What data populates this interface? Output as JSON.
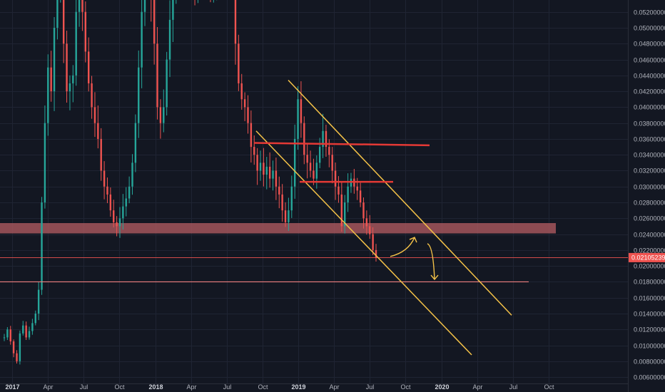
{
  "chart_data": {
    "type": "candlestick",
    "price_scale": {
      "ylim": [
        0.0052,
        0.0535
      ],
      "tick_labels": [
        "0.05200000",
        "0.05000000",
        "0.04800000",
        "0.04600000",
        "0.04400000",
        "0.04200000",
        "0.04000000",
        "0.03800000",
        "0.03600000",
        "0.03400000",
        "0.03200000",
        "0.03000000",
        "0.02800000",
        "0.02600000",
        "0.02400000",
        "0.02200000",
        "0.02000000",
        "0.01800000",
        "0.01600000",
        "0.01400000",
        "0.01200000",
        "0.01000000",
        "0.00800000",
        "0.00600000"
      ],
      "tick_values": [
        0.052,
        0.05,
        0.048,
        0.046,
        0.044,
        0.042,
        0.04,
        0.038,
        0.036,
        0.034,
        0.032,
        0.03,
        0.028,
        0.026,
        0.024,
        0.022,
        0.02,
        0.018,
        0.016,
        0.014,
        0.012,
        0.01,
        0.008,
        0.006
      ]
    },
    "time_scale": {
      "labels": [
        "2017",
        "Apr",
        "Jul",
        "Oct",
        "2018",
        "Apr",
        "Jul",
        "Oct",
        "2019",
        "Apr",
        "Jul",
        "Oct",
        "2020",
        "Apr",
        "Jul",
        "Oct"
      ],
      "bold": [
        "2017",
        "2018",
        "2019",
        "2020"
      ]
    },
    "last_price": {
      "label": "0.02105239",
      "value": 0.02105239
    },
    "series": [
      {
        "values": [
          0.011,
          0.012,
          0.0105,
          0.009,
          0.008,
          0.0115,
          0.0125,
          0.011,
          0.0118,
          0.0128,
          0.014,
          0.017,
          0.028,
          0.038,
          0.045,
          0.042,
          0.05,
          0.055,
          0.056,
          0.048,
          0.042,
          0.043,
          0.044,
          0.052,
          0.056,
          0.052,
          0.047,
          0.043,
          0.04,
          0.038,
          0.036,
          0.032,
          0.03,
          0.029,
          0.027,
          0.0255,
          0.025,
          0.026,
          0.0275,
          0.0285,
          0.03,
          0.033,
          0.038,
          0.045,
          0.052,
          0.056,
          0.057,
          0.054,
          0.048,
          0.04,
          0.038,
          0.04,
          0.046,
          0.051,
          0.056,
          0.06,
          0.062,
          0.061,
          0.059,
          0.057,
          0.056,
          0.055,
          0.056,
          0.057,
          0.056,
          0.055,
          0.0545,
          0.0555,
          0.057,
          0.058,
          0.06,
          0.062,
          0.06,
          0.056,
          0.048,
          0.043,
          0.041,
          0.04,
          0.038,
          0.035,
          0.034,
          0.032,
          0.033,
          0.0315,
          0.0325,
          0.031,
          0.032,
          0.03,
          0.029,
          0.027,
          0.0255,
          0.027,
          0.03,
          0.036,
          0.041,
          0.038,
          0.034,
          0.033,
          0.032,
          0.031,
          0.033,
          0.035,
          0.037,
          0.035,
          0.034,
          0.032,
          0.03,
          0.029,
          0.025,
          0.028,
          0.03,
          0.031,
          0.03,
          0.0295,
          0.028,
          0.026,
          0.025,
          0.024,
          0.022,
          0.021
        ]
      }
    ],
    "annotations": {
      "support_zone": [
        0.0241,
        0.0254
      ],
      "red_lines": [
        {
          "value_start": 0.0355,
          "value_end": 0.0352
        },
        {
          "value_start": 0.0306,
          "value_end": 0.0306
        }
      ],
      "horizontal_line": 0.018,
      "channel_upper": [
        0.0434,
        0.0138
      ],
      "channel_lower": [
        0.037,
        0.0088
      ],
      "arrow_up": [
        0.0212,
        0.0236
      ],
      "arrow_down": [
        0.0228,
        0.0183
      ]
    }
  },
  "colors": {
    "background": "#131722",
    "grid": "#1f2433",
    "candle_up": "#26a69a",
    "candle_down": "#ef5350",
    "zone": "#b05a60",
    "trend_line": "#f4c248",
    "resistance": "#e53935",
    "level_line": "#f08080",
    "badge": "#ef5350"
  }
}
